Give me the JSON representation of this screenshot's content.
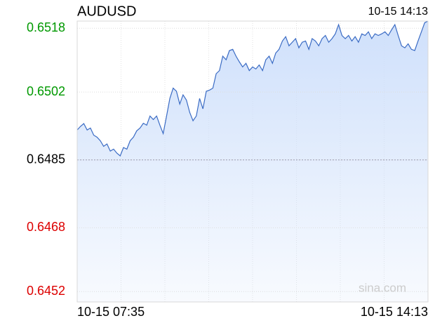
{
  "chart_data": {
    "type": "line",
    "title": "AUDUSD",
    "updated": "10-15 14:13",
    "watermark": "sina.com",
    "x_labels": [
      "10-15 07:35",
      "10-15 14:13"
    ],
    "reference": 0.6485,
    "up_color": "#009900",
    "flat_color": "#000000",
    "down_color": "#dd0000",
    "color": "#3a6bc4",
    "fill": "#cfe0fb",
    "ylim": [
      0.64494,
      0.65198
    ],
    "yticks": [
      0.6518,
      0.6502,
      0.6485,
      0.6468,
      0.6452
    ],
    "grid": true,
    "values": [
      0.64925,
      0.64934,
      0.64941,
      0.64925,
      0.6493,
      0.64912,
      0.64907,
      0.64898,
      0.64884,
      0.6489,
      0.64872,
      0.64877,
      0.64867,
      0.6486,
      0.64881,
      0.64877,
      0.64898,
      0.64907,
      0.64923,
      0.6493,
      0.64942,
      0.64937,
      0.6496,
      0.64951,
      0.6496,
      0.64937,
      0.64916,
      0.6496,
      0.65004,
      0.6503,
      0.65022,
      0.6499,
      0.65013,
      0.65,
      0.64969,
      0.64948,
      0.6496,
      0.65004,
      0.64978,
      0.65022,
      0.65025,
      0.6503,
      0.65066,
      0.65074,
      0.6511,
      0.65101,
      0.65124,
      0.65127,
      0.6511,
      0.65096,
      0.65083,
      0.65092,
      0.65074,
      0.65083,
      0.65078,
      0.65088,
      0.65074,
      0.65101,
      0.6511,
      0.65092,
      0.65118,
      0.65127,
      0.65148,
      0.65159,
      0.65136,
      0.65145,
      0.65154,
      0.65131,
      0.65145,
      0.65148,
      0.65127,
      0.65154,
      0.65148,
      0.65136,
      0.65154,
      0.65162,
      0.65145,
      0.65154,
      0.65166,
      0.65189,
      0.65162,
      0.65154,
      0.65162,
      0.65148,
      0.65159,
      0.65145,
      0.65166,
      0.65162,
      0.65171,
      0.65154,
      0.65166,
      0.65162,
      0.65166,
      0.65171,
      0.65162,
      0.65176,
      0.65189,
      0.65162,
      0.65136,
      0.65131,
      0.65141,
      0.65127,
      0.65124,
      0.65148,
      0.65171,
      0.65194,
      0.65198
    ]
  }
}
